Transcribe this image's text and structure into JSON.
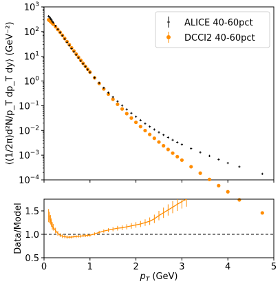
{
  "chart_data": [
    {
      "type": "scatter",
      "ylabel": "⟨(1/2π)d²N/p_T dp_T dy⟩ (GeV⁻²)",
      "xlabel": "",
      "xlim": [
        0,
        5
      ],
      "ylim_log10": [
        -4,
        3
      ],
      "yscale": "log",
      "grid": false,
      "legend_position": "top-right",
      "x_ticks": [
        "0",
        "1",
        "2",
        "3",
        "4",
        "5"
      ],
      "y_ticks": [
        {
          "mant": "10",
          "exp": "3",
          "e": 3
        },
        {
          "mant": "10",
          "exp": "2",
          "e": 2
        },
        {
          "mant": "10",
          "exp": "1",
          "e": 1
        },
        {
          "mant": "10",
          "exp": "0",
          "e": 0
        },
        {
          "mant": "10",
          "exp": "−1",
          "e": -1
        },
        {
          "mant": "10",
          "exp": "−2",
          "e": -2
        },
        {
          "mant": "10",
          "exp": "−3",
          "e": -3
        },
        {
          "mant": "10",
          "exp": "−4",
          "e": -4
        }
      ],
      "series": [
        {
          "name": "ALICE 40-60pct",
          "color": "#000000",
          "marker": "plus",
          "x": [
            0.1,
            0.12,
            0.14,
            0.16,
            0.18,
            0.2,
            0.25,
            0.3,
            0.35,
            0.4,
            0.45,
            0.5,
            0.55,
            0.6,
            0.65,
            0.7,
            0.75,
            0.8,
            0.85,
            0.9,
            0.95,
            1.0,
            1.1,
            1.2,
            1.3,
            1.4,
            1.5,
            1.6,
            1.7,
            1.8,
            1.9,
            2.0,
            2.1,
            2.2,
            2.3,
            2.4,
            2.5,
            2.6,
            2.7,
            2.8,
            2.9,
            3.0,
            3.2,
            3.4,
            3.6,
            3.8,
            4.0,
            4.25,
            4.75
          ],
          "y": [
            420,
            380,
            340,
            300,
            260,
            230,
            170,
            125,
            92,
            68,
            50,
            37,
            27.5,
            20.5,
            15.3,
            11.4,
            8.6,
            6.5,
            4.95,
            3.8,
            2.9,
            2.25,
            1.36,
            0.84,
            0.53,
            0.34,
            0.225,
            0.15,
            0.102,
            0.071,
            0.05,
            0.036,
            0.026,
            0.019,
            0.0143,
            0.0109,
            0.0084,
            0.0066,
            0.0052,
            0.0041,
            0.0033,
            0.0027,
            0.00185,
            0.0013,
            0.00093,
            0.00067,
            0.00048,
            0.00034,
            0.000175
          ]
        },
        {
          "name": "DCCI2 40-60pct",
          "color": "#ff8c00",
          "marker": "circle",
          "x": [
            0.1,
            0.12,
            0.14,
            0.16,
            0.18,
            0.2,
            0.25,
            0.3,
            0.35,
            0.4,
            0.45,
            0.5,
            0.55,
            0.6,
            0.65,
            0.7,
            0.75,
            0.8,
            0.85,
            0.9,
            0.95,
            1.0,
            1.1,
            1.2,
            1.3,
            1.4,
            1.5,
            1.6,
            1.7,
            1.8,
            1.9,
            2.0,
            2.1,
            2.2,
            2.3,
            2.4,
            2.5,
            2.6,
            2.7,
            2.8,
            2.9,
            3.0,
            3.2,
            3.4,
            3.6,
            3.8,
            4.0,
            4.25,
            4.75
          ],
          "y": [
            300,
            280,
            260,
            240,
            220,
            200,
            158,
            122,
            94,
            71,
            53,
            39.5,
            29.5,
            22,
            16.5,
            12.3,
            9.2,
            6.9,
            5.2,
            3.95,
            3.0,
            2.3,
            1.35,
            0.8,
            0.48,
            0.295,
            0.183,
            0.115,
            0.074,
            0.048,
            0.0318,
            0.0213,
            0.0144,
            0.0099,
            0.0069,
            0.00483,
            0.0034,
            0.0024,
            0.0017,
            0.00121,
            0.00087,
            0.00063,
            0.00034,
            0.000187,
            0.000104,
            5.85e-05,
            3.3e-05,
            1.55e-05,
            4.6e-06
          ]
        }
      ]
    },
    {
      "type": "line",
      "xlabel": "p_T (GeV)",
      "ylabel": "Data/Model",
      "xlim": [
        0,
        5
      ],
      "ylim": [
        0.5,
        1.75
      ],
      "x_ticks": [
        "0",
        "1",
        "2",
        "3",
        "4",
        "5"
      ],
      "y_ticks": [
        "0.5",
        "1.0",
        "1.5"
      ],
      "reference_line": 1.0,
      "color": "#ff8c00",
      "x": [
        0.1,
        0.12,
        0.14,
        0.16,
        0.18,
        0.2,
        0.25,
        0.3,
        0.35,
        0.4,
        0.45,
        0.5,
        0.55,
        0.6,
        0.65,
        0.7,
        0.75,
        0.8,
        0.85,
        0.9,
        0.95,
        1.0,
        1.1,
        1.2,
        1.3,
        1.4,
        1.5,
        1.6,
        1.7,
        1.8,
        1.9,
        2.0,
        2.1,
        2.2,
        2.3,
        2.4,
        2.5,
        2.6,
        2.7,
        2.8,
        2.9,
        3.0,
        3.1
      ],
      "y": [
        1.4,
        1.36,
        1.31,
        1.25,
        1.18,
        1.15,
        1.08,
        1.02,
        0.98,
        0.96,
        0.95,
        0.94,
        0.94,
        0.94,
        0.95,
        0.95,
        0.96,
        0.96,
        0.97,
        0.97,
        0.98,
        0.98,
        1.01,
        1.04,
        1.07,
        1.09,
        1.11,
        1.13,
        1.14,
        1.16,
        1.18,
        1.2,
        1.22,
        1.25,
        1.28,
        1.33,
        1.4,
        1.46,
        1.52,
        1.58,
        1.64,
        1.7,
        1.75
      ],
      "err": [
        0.14,
        0.12,
        0.1,
        0.09,
        0.08,
        0.07,
        0.06,
        0.05,
        0.04,
        0.04,
        0.035,
        0.035,
        0.03,
        0.03,
        0.03,
        0.03,
        0.03,
        0.03,
        0.03,
        0.03,
        0.03,
        0.03,
        0.03,
        0.035,
        0.035,
        0.04,
        0.045,
        0.05,
        0.05,
        0.055,
        0.06,
        0.06,
        0.065,
        0.07,
        0.08,
        0.09,
        0.1,
        0.11,
        0.12,
        0.13,
        0.14,
        0.15,
        0.16
      ]
    }
  ]
}
